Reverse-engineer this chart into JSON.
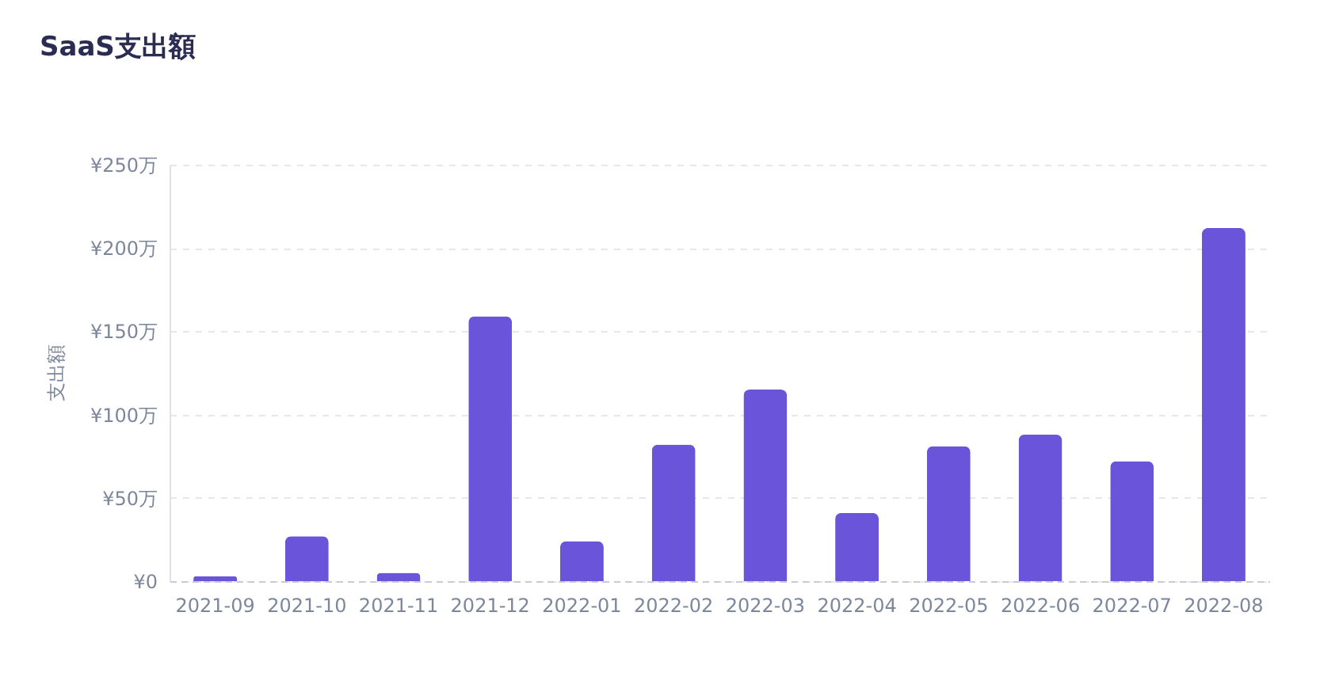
{
  "chart_data": {
    "type": "bar",
    "title": "SaaS支出額",
    "ylabel": "支出額",
    "categories": [
      "2021-09",
      "2021-10",
      "2021-11",
      "2021-12",
      "2022-01",
      "2022-02",
      "2022-03",
      "2022-04",
      "2022-05",
      "2022-06",
      "2022-07",
      "2022-08"
    ],
    "values": [
      3,
      27,
      5,
      159,
      24,
      82,
      115,
      41,
      81,
      88,
      72,
      212
    ],
    "color": "#6a55da",
    "ylim": [
      0,
      250
    ],
    "yticks": [
      {
        "value": 0,
        "label": "¥0"
      },
      {
        "value": 50,
        "label": "¥50万"
      },
      {
        "value": 100,
        "label": "¥100万"
      },
      {
        "value": 150,
        "label": "¥150万"
      },
      {
        "value": 200,
        "label": "¥200万"
      },
      {
        "value": 250,
        "label": "¥250万"
      }
    ],
    "grid": "y"
  }
}
